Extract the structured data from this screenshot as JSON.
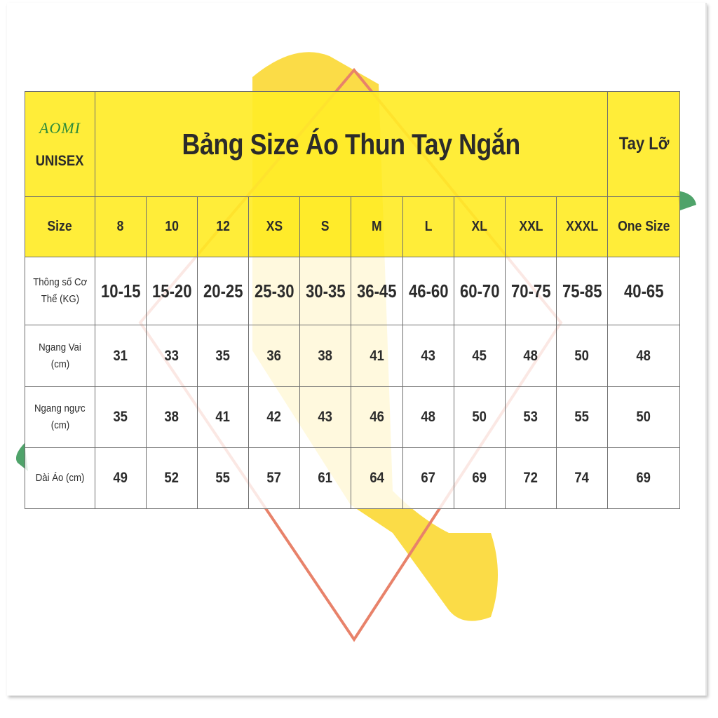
{
  "colors": {
    "header_yellow": "#ffec28",
    "brush_yellow": "#fbd833",
    "diamond": "#e8826a",
    "leaf_green": "#4fa36a",
    "text": "#2b2b2b"
  },
  "logo": {
    "text": "AOMI",
    "subtitle": "UNISEX"
  },
  "title": "Bảng Size Áo Thun Tay Ngắn",
  "side_title": "Tay Lỡ",
  "size_row": {
    "label": "Size",
    "values": [
      "8",
      "10",
      "12",
      "XS",
      "S",
      "M",
      "L",
      "XL",
      "XXL",
      "XXXL",
      "One Size"
    ]
  },
  "rows": [
    {
      "label_line1": "Thông số Cơ",
      "label_line2": "Thể (KG)",
      "values": [
        "10-15",
        "15-20",
        "20-25",
        "25-30",
        "30-35",
        "36-45",
        "46-60",
        "60-70",
        "70-75",
        "75-85",
        "40-65"
      ]
    },
    {
      "label_line1": "Ngang Vai",
      "label_line2": "(cm)",
      "values": [
        "31",
        "33",
        "35",
        "36",
        "38",
        "41",
        "43",
        "45",
        "48",
        "50",
        "48"
      ]
    },
    {
      "label_line1": "Ngang ngực",
      "label_line2": "(cm)",
      "values": [
        "35",
        "38",
        "41",
        "42",
        "43",
        "46",
        "48",
        "50",
        "53",
        "55",
        "50"
      ]
    },
    {
      "label_line1": "Dài Áo (cm)",
      "label_line2": "",
      "values": [
        "49",
        "52",
        "55",
        "57",
        "61",
        "64",
        "67",
        "69",
        "72",
        "74",
        "69"
      ]
    }
  ]
}
